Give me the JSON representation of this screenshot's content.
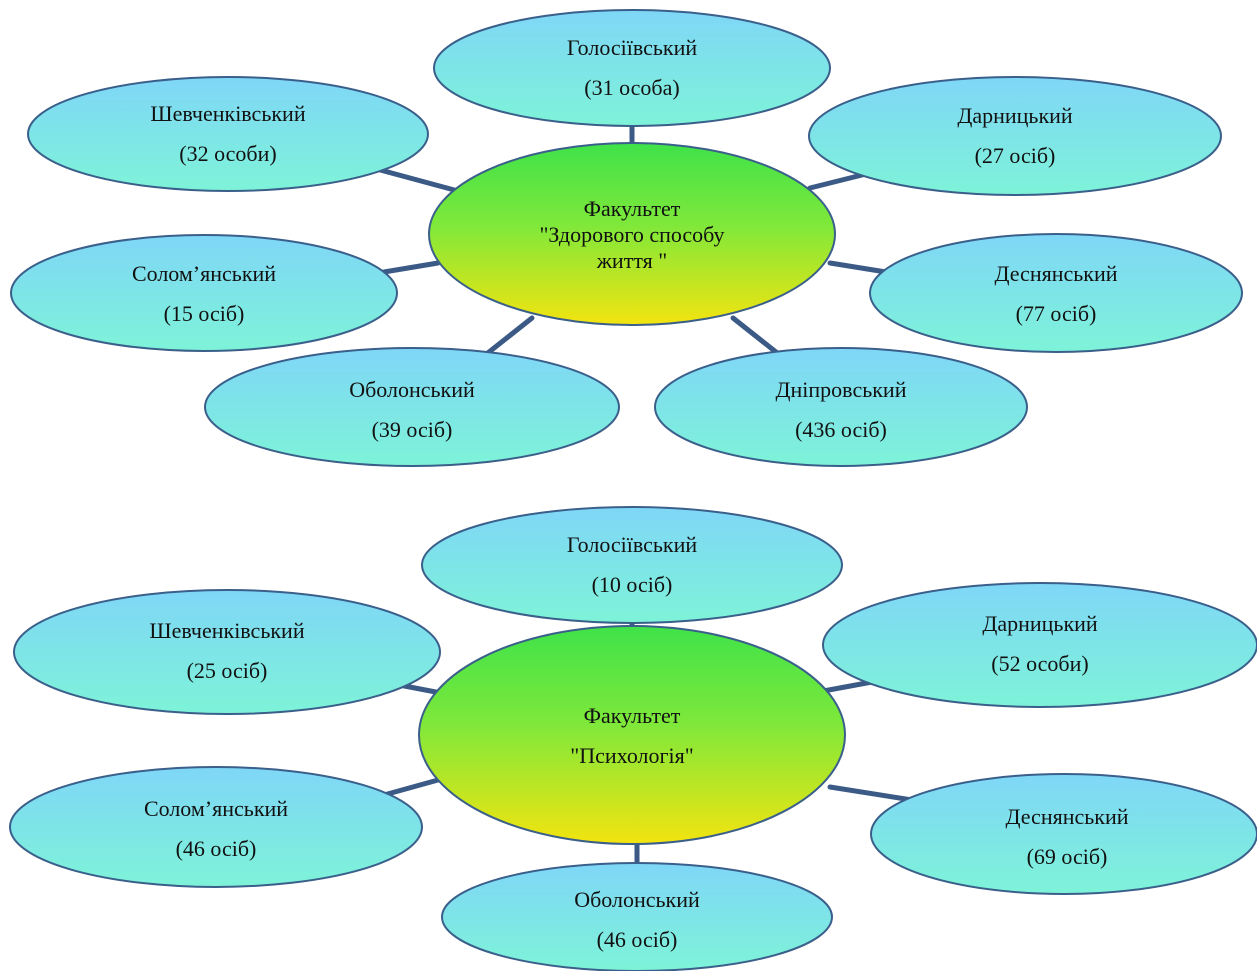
{
  "colors": {
    "satellite_top": "#7fd6f7",
    "satellite_bottom": "#7ef3d8",
    "center_top": "#3fe24a",
    "center_bottom": "#f3e410",
    "connector": "#3b5a86",
    "outline": "#3a5f8a"
  },
  "diagram1": {
    "center": {
      "line1": "Факультет",
      "line2": "\"Здорового способу",
      "line3": "життя \""
    },
    "nodes": [
      {
        "name": "Голосіївський",
        "count": "(31 особа)"
      },
      {
        "name": "Дарницький",
        "count": "(27 осіб)"
      },
      {
        "name": "Деснянський",
        "count": "(77 осіб)"
      },
      {
        "name": "Дніпровський",
        "count": "(436 осіб)"
      },
      {
        "name": "Оболонський",
        "count": "(39 осіб)"
      },
      {
        "name": "Солом’янський",
        "count": "(15 осіб)"
      },
      {
        "name": "Шевченківський",
        "count": "(32 особи)"
      }
    ]
  },
  "diagram2": {
    "center": {
      "line1": "Факультет",
      "line2": "\"Психологія\""
    },
    "nodes": [
      {
        "name": "Голосіївський",
        "count": "(10 осіб)"
      },
      {
        "name": "Дарницький",
        "count": "(52 особи)"
      },
      {
        "name": "Деснянський",
        "count": "(69 осіб)"
      },
      {
        "name": "Оболонський",
        "count": "(46 осіб)"
      },
      {
        "name": "Солом’янський",
        "count": "(46 осіб)"
      },
      {
        "name": "Шевченківський",
        "count": "(25 осіб)"
      }
    ]
  }
}
